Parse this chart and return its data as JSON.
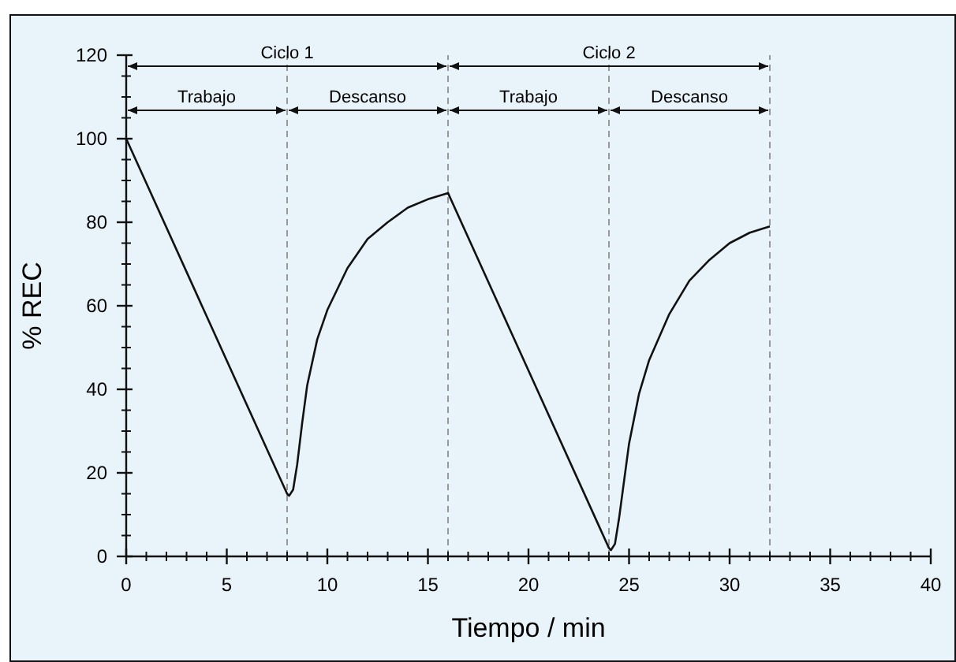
{
  "chart_data": {
    "type": "line",
    "xlabel": "Tiempo / min",
    "ylabel": "% REC",
    "xlim": [
      0,
      40
    ],
    "xticks": [
      0,
      5,
      10,
      15,
      20,
      25,
      30,
      35,
      40
    ],
    "ylim": [
      0,
      120
    ],
    "yticks": [
      0,
      20,
      40,
      60,
      80,
      100,
      120
    ],
    "series": [
      {
        "color": "#111111",
        "x": [
          0,
          8,
          8.1,
          8.3,
          8.5,
          8.75,
          9,
          9.5,
          10,
          11,
          12,
          13,
          14,
          15,
          16,
          24,
          24.1,
          24.3,
          24.5,
          24.75,
          25,
          25.5,
          26,
          27,
          28,
          29,
          30,
          31,
          32
        ],
        "values": [
          100,
          15,
          14.5,
          16,
          22,
          32,
          41,
          52,
          59,
          69,
          76,
          80,
          83.5,
          85.5,
          87,
          2,
          1.5,
          3,
          9,
          18,
          27,
          39,
          47,
          58,
          66,
          71,
          75,
          77.5,
          79
        ]
      }
    ],
    "marker": "none",
    "line_style": "solid",
    "grid": false,
    "ref_lines": [
      {
        "axis": "x",
        "value": 8,
        "color": "#999999",
        "line_style": "dashed"
      },
      {
        "axis": "x",
        "value": 16,
        "color": "#999999",
        "line_style": "dashed"
      },
      {
        "axis": "x",
        "value": 24,
        "color": "#999999",
        "line_style": "dashed"
      },
      {
        "axis": "x",
        "value": 32,
        "color": "#999999",
        "line_style": "dashed"
      }
    ],
    "annotations": [
      "Ciclo 1",
      "Ciclo 2",
      "Trabajo",
      "Descanso",
      "Trabajo",
      "Descanso"
    ]
  }
}
